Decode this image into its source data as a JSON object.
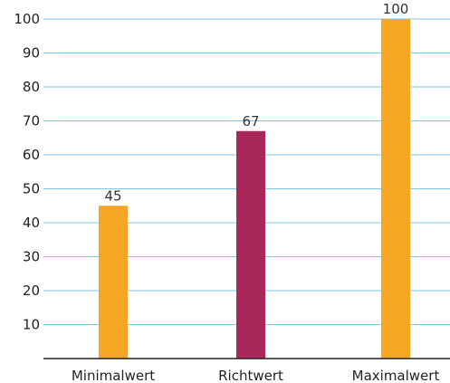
{
  "chart_data": {
    "type": "bar",
    "categories": [
      "Minimalwert",
      "Richtwert",
      "Maximalwert"
    ],
    "values": [
      45,
      67,
      100
    ],
    "value_labels": [
      "45",
      "67",
      "100"
    ],
    "bar_colors": [
      "#f5a623",
      "#a8285a",
      "#f5a623"
    ],
    "gridline_color": "#7ec8e3",
    "axis_color": "#222222",
    "y_ticks": [
      10,
      20,
      30,
      40,
      50,
      60,
      70,
      80,
      90,
      100
    ],
    "ylim": [
      0,
      100
    ],
    "grid": true,
    "title": "",
    "xlabel": "",
    "ylabel": ""
  }
}
